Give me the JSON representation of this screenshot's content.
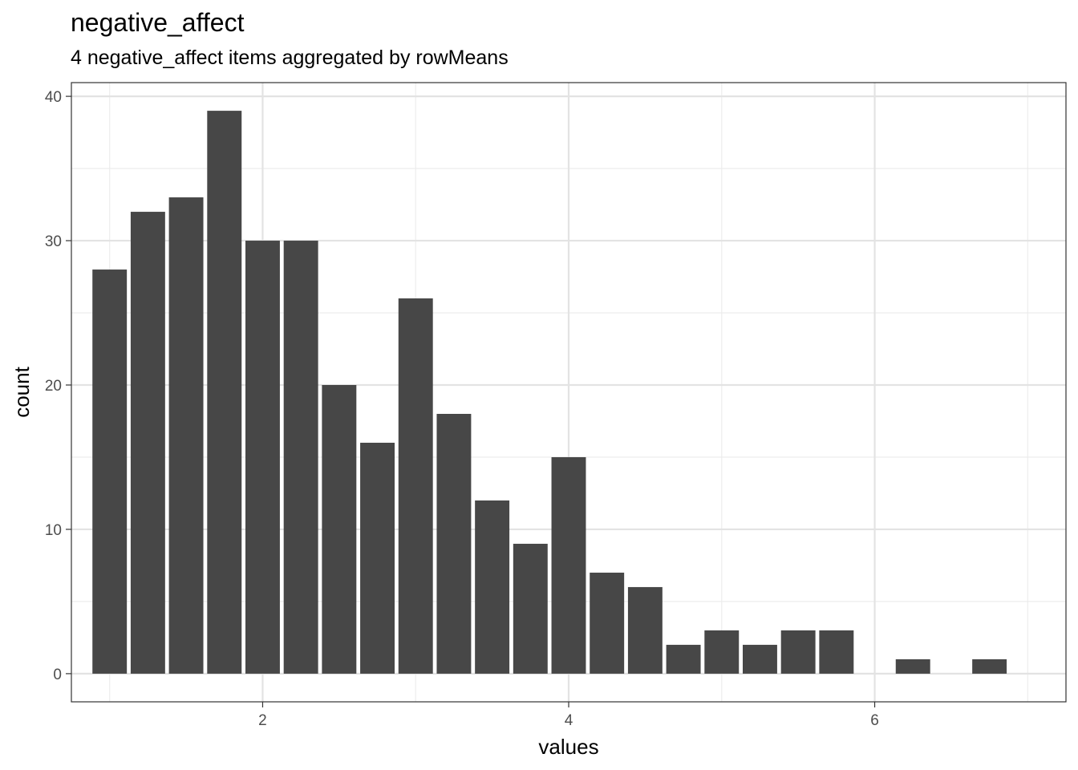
{
  "chart_data": {
    "type": "bar",
    "title": "negative_affect",
    "subtitle": "4 negative_affect items aggregated by rowMeans",
    "xlabel": "values",
    "ylabel": "count",
    "xlim": [
      0.75,
      7.25
    ],
    "ylim": [
      -1.95,
      40.95
    ],
    "xticks": [
      2,
      4,
      6
    ],
    "yticks": [
      0,
      10,
      20,
      30,
      40
    ],
    "x_minor_gridlines": [
      1,
      3,
      5,
      7
    ],
    "y_minor_gridlines": [
      5,
      15,
      25,
      35
    ],
    "bin_width": 0.25,
    "grid": true,
    "legend": "none",
    "bar_color": "#474747",
    "bins": [
      {
        "x": 1.0,
        "count": 28
      },
      {
        "x": 1.25,
        "count": 32
      },
      {
        "x": 1.5,
        "count": 33
      },
      {
        "x": 1.75,
        "count": 39
      },
      {
        "x": 2.0,
        "count": 30
      },
      {
        "x": 2.25,
        "count": 30
      },
      {
        "x": 2.5,
        "count": 20
      },
      {
        "x": 2.75,
        "count": 16
      },
      {
        "x": 3.0,
        "count": 26
      },
      {
        "x": 3.25,
        "count": 18
      },
      {
        "x": 3.5,
        "count": 12
      },
      {
        "x": 3.75,
        "count": 9
      },
      {
        "x": 4.0,
        "count": 15
      },
      {
        "x": 4.25,
        "count": 7
      },
      {
        "x": 4.5,
        "count": 6
      },
      {
        "x": 4.75,
        "count": 2
      },
      {
        "x": 5.0,
        "count": 3
      },
      {
        "x": 5.25,
        "count": 2
      },
      {
        "x": 5.5,
        "count": 3
      },
      {
        "x": 5.75,
        "count": 3
      },
      {
        "x": 6.0,
        "count": 0
      },
      {
        "x": 6.25,
        "count": 1
      },
      {
        "x": 6.5,
        "count": 0
      },
      {
        "x": 6.75,
        "count": 1
      }
    ]
  }
}
